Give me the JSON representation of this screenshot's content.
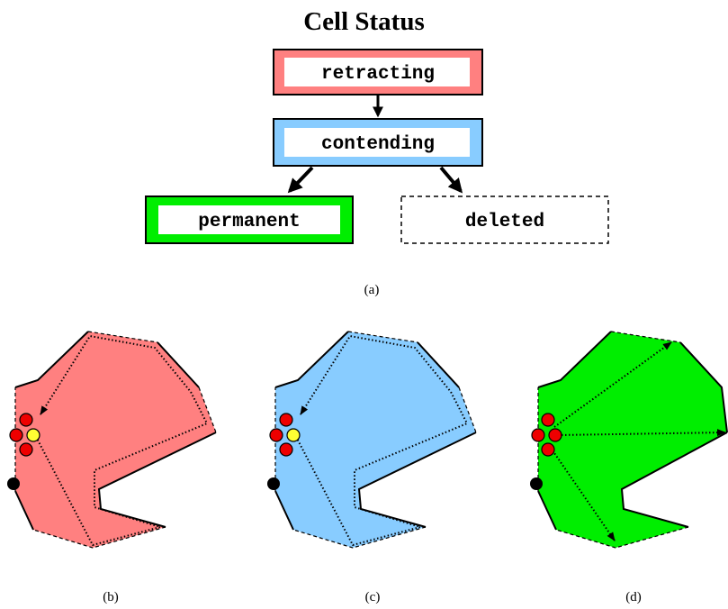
{
  "title": "Cell Status",
  "states": {
    "retracting": {
      "label": "retracting",
      "color": "#FF8080"
    },
    "contending": {
      "label": "contending",
      "color": "#88CCFF"
    },
    "permanent": {
      "label": "permanent",
      "color": "#00EE00"
    },
    "deleted": {
      "label": "deleted",
      "color": "#FFFFFF"
    }
  },
  "captions": {
    "a": "(a)",
    "b": "(b)",
    "c": "(c)",
    "d": "(d)"
  },
  "colors": {
    "disk_red": "#EE0000",
    "disk_yellow": "#FFFF33",
    "disk_black": "#000000"
  }
}
